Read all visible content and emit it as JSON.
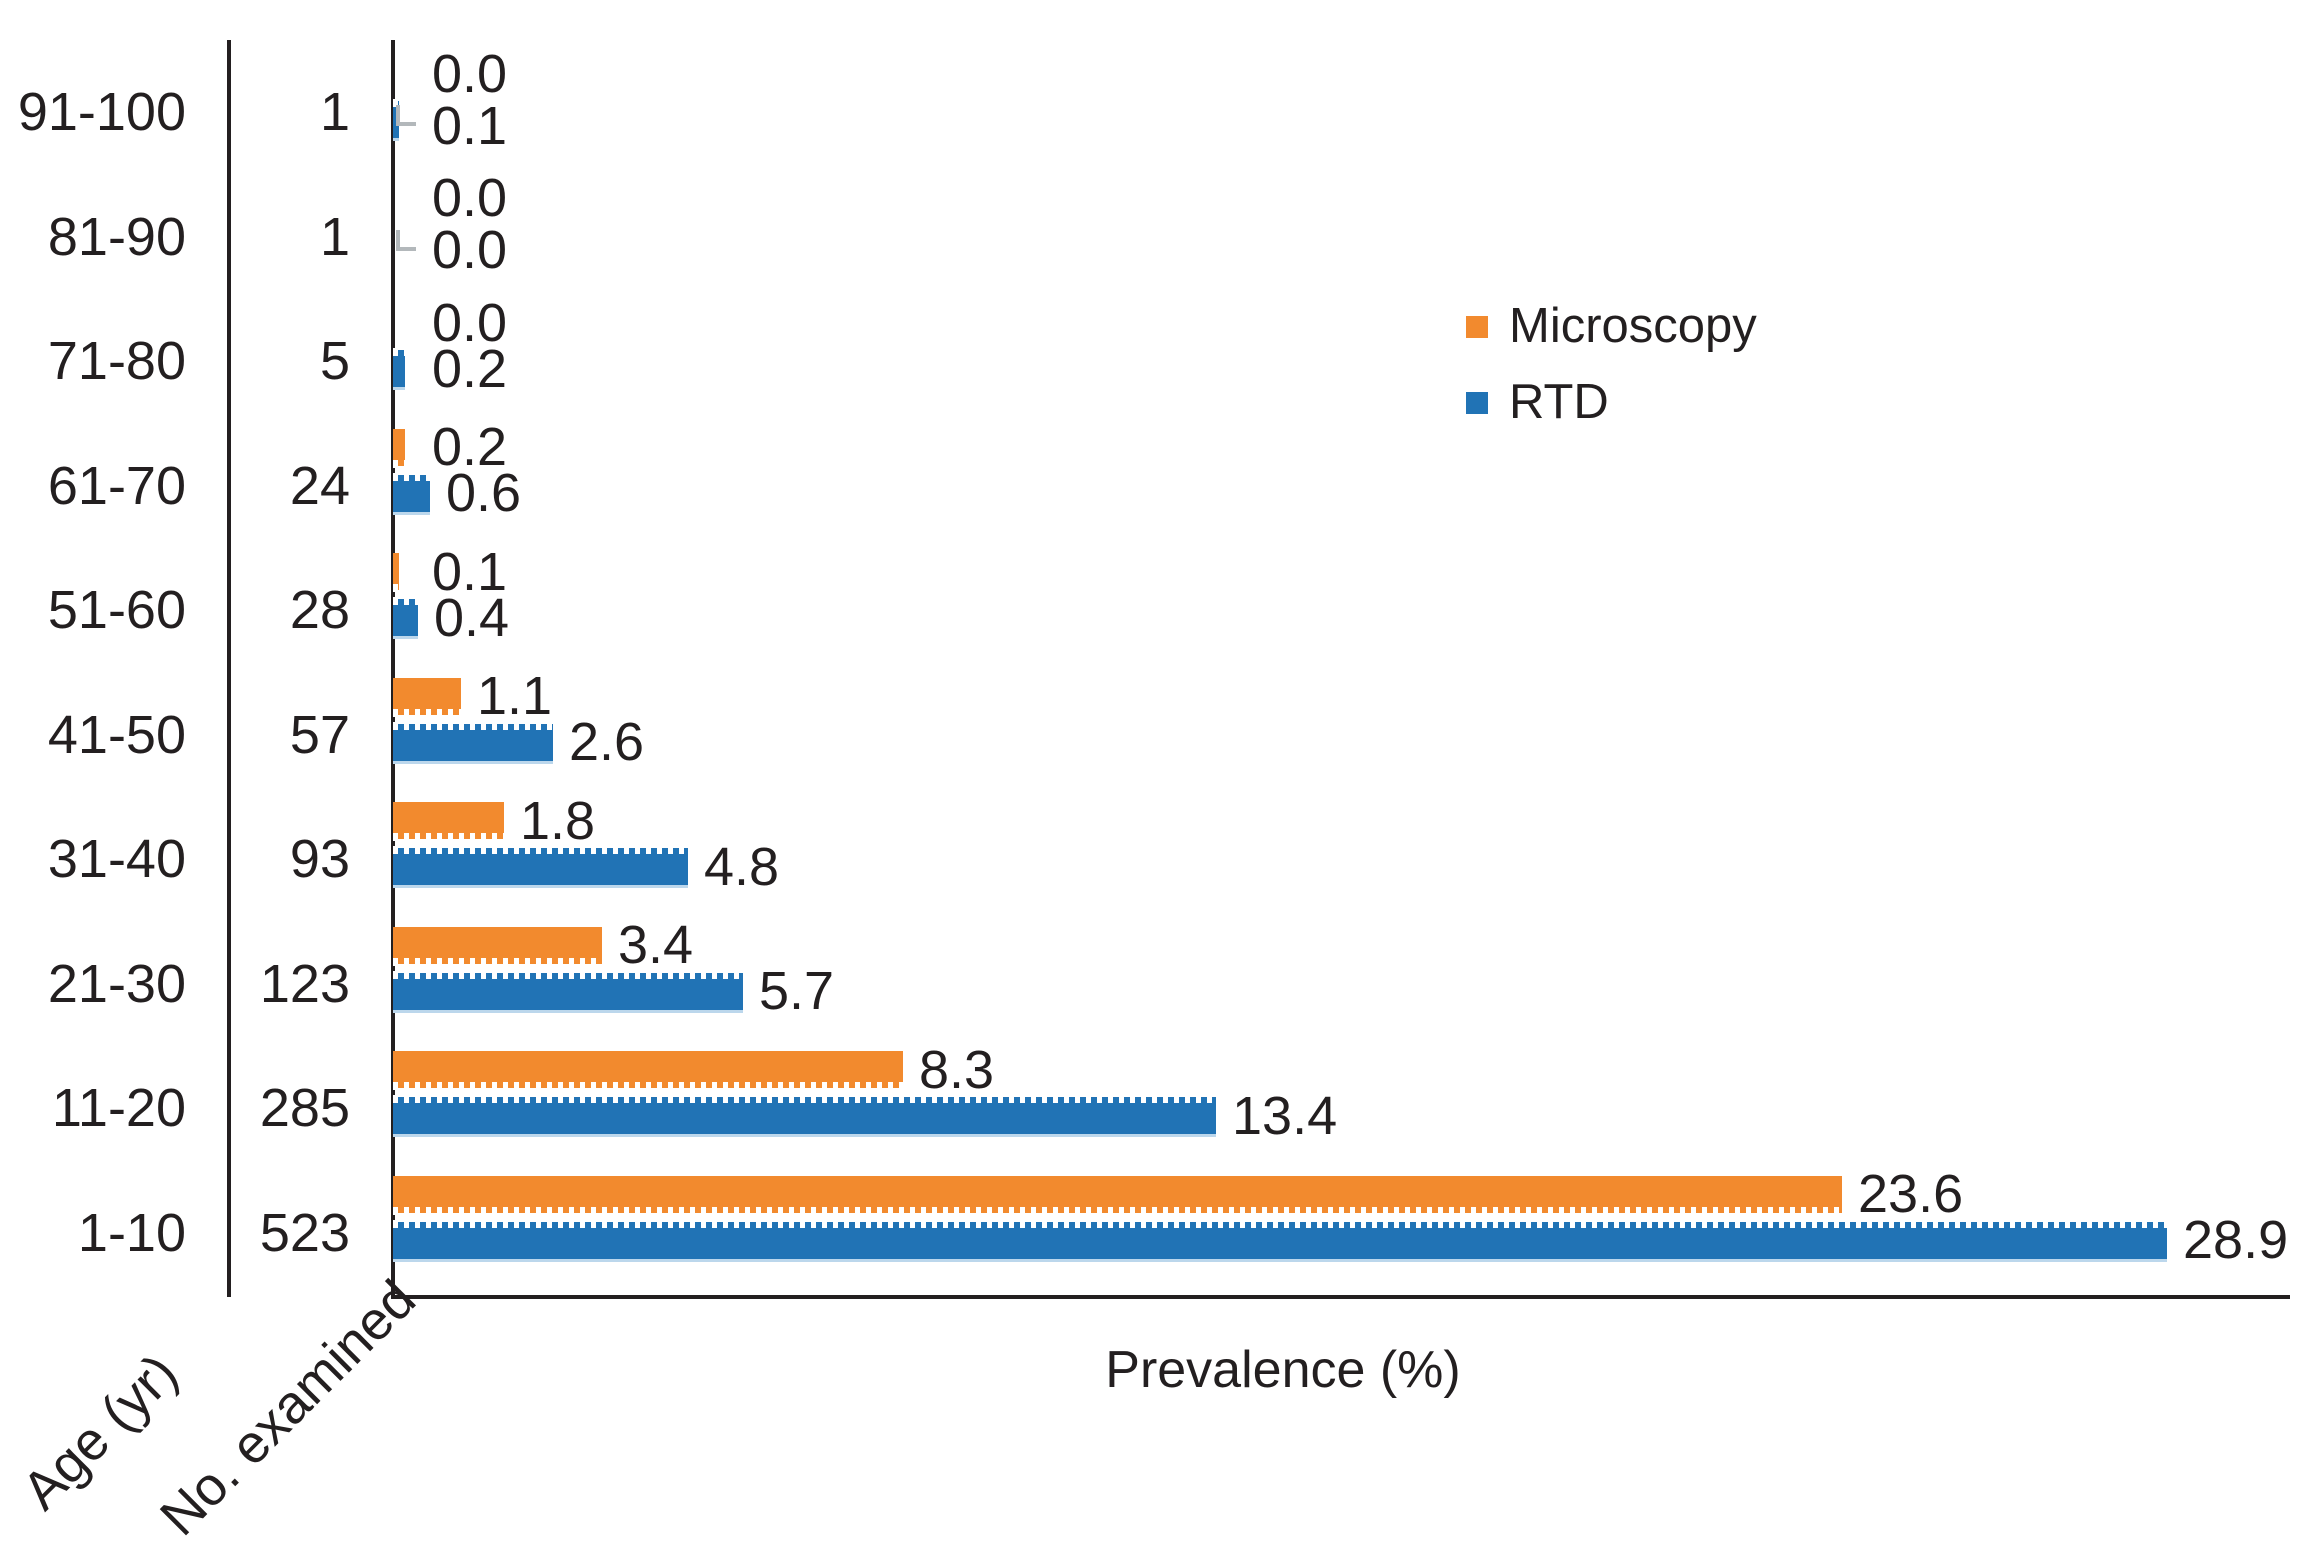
{
  "chart_data": {
    "type": "bar",
    "orientation": "horizontal",
    "title": "",
    "xlabel": "Prevalence (%)",
    "ylabel": "Age (yr)",
    "count_column_label": "No. examined",
    "xlim": [
      0,
      31
    ],
    "grid": false,
    "legend_position": "upper-right",
    "legend": [
      {
        "name": "Microscopy",
        "color": "#F28A2E"
      },
      {
        "name": "RTD",
        "color": "#2173B5"
      }
    ],
    "categories_top_to_bottom": [
      "91-100",
      "81-90",
      "71-80",
      "61-70",
      "51-60",
      "41-50",
      "31-40",
      "21-30",
      "11-20",
      "1-10"
    ],
    "no_examined": [
      1,
      1,
      5,
      24,
      28,
      57,
      93,
      123,
      285,
      523
    ],
    "series": [
      {
        "name": "Microscopy",
        "values": [
          0.0,
          0.0,
          0.0,
          0.2,
          0.1,
          1.1,
          1.8,
          3.4,
          8.3,
          23.6
        ]
      },
      {
        "name": "RTD",
        "values": [
          0.1,
          0.0,
          0.2,
          0.6,
          0.4,
          2.6,
          4.8,
          5.7,
          13.4,
          28.9
        ]
      }
    ]
  },
  "colors": {
    "ink": "#231F20",
    "leader_line": "#B3B8BB",
    "rtd_pale_edge": "#BCD7EC",
    "background": "#FFFFFF"
  }
}
